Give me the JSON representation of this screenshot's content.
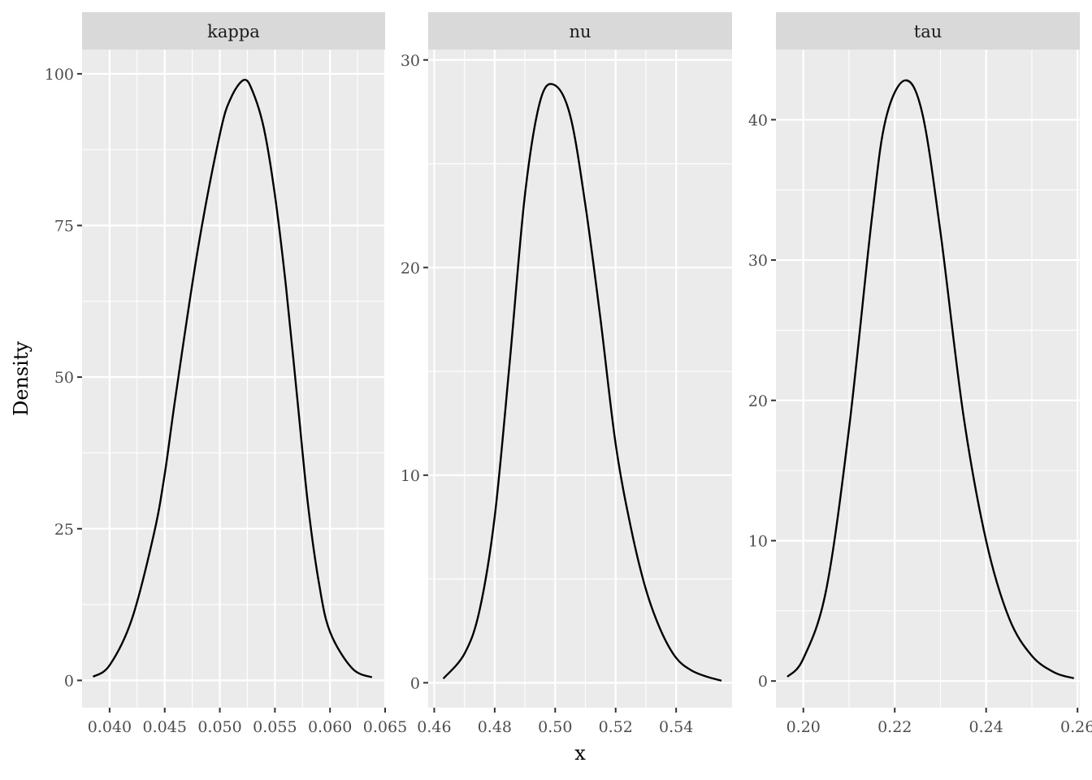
{
  "chart_data": [
    {
      "type": "line",
      "facet": "kappa",
      "xlim": [
        0.0375,
        0.065
      ],
      "ylim": [
        -4.5,
        104
      ],
      "x_ticks": [
        0.04,
        0.045,
        0.05,
        0.055,
        0.06,
        0.065
      ],
      "x_tick_labels": [
        "0.040",
        "0.045",
        "0.050",
        "0.055",
        "0.060",
        "0.065"
      ],
      "y_ticks": [
        0,
        25,
        50,
        75,
        100
      ],
      "y_tick_labels": [
        "0",
        "25",
        "50",
        "75",
        "100"
      ],
      "x": [
        0.0385,
        0.04,
        0.042,
        0.044,
        0.045,
        0.046,
        0.048,
        0.05,
        0.051,
        0.0522,
        0.053,
        0.054,
        0.055,
        0.056,
        0.057,
        0.058,
        0.059,
        0.06,
        0.062,
        0.0638
      ],
      "y": [
        0.6,
        2.5,
        10,
        24,
        34,
        47,
        71,
        90,
        96,
        99,
        97,
        91,
        80,
        65,
        47,
        29,
        16,
        8,
        2,
        0.5
      ]
    },
    {
      "type": "line",
      "facet": "nu",
      "xlim": [
        0.458,
        0.5585
      ],
      "ylim": [
        -1.2,
        30.5
      ],
      "x_ticks": [
        0.46,
        0.48,
        0.5,
        0.52,
        0.54
      ],
      "x_tick_labels": [
        "0.46",
        "0.48",
        "0.50",
        "0.52",
        "0.54"
      ],
      "y_ticks": [
        0,
        10,
        20,
        30
      ],
      "y_tick_labels": [
        "0",
        "10",
        "20",
        "30"
      ],
      "x": [
        0.463,
        0.47,
        0.475,
        0.48,
        0.485,
        0.49,
        0.495,
        0.4997,
        0.505,
        0.51,
        0.515,
        0.52,
        0.525,
        0.53,
        0.535,
        0.54,
        0.545,
        0.55,
        0.555
      ],
      "y": [
        0.2,
        1.4,
        3.5,
        8.0,
        15.5,
        23.5,
        28.0,
        28.8,
        27.3,
        23.0,
        17.5,
        11.5,
        7.5,
        4.5,
        2.5,
        1.2,
        0.6,
        0.3,
        0.1
      ]
    },
    {
      "type": "line",
      "facet": "tau",
      "xlim": [
        0.194,
        0.2605
      ],
      "ylim": [
        -1.9,
        45
      ],
      "x_ticks": [
        0.2,
        0.22,
        0.24,
        0.26
      ],
      "x_tick_labels": [
        "0.20",
        "0.22",
        "0.24",
        "0.26"
      ],
      "y_ticks": [
        0,
        10,
        20,
        30,
        40
      ],
      "y_tick_labels": [
        "0",
        "10",
        "20",
        "30",
        "40"
      ],
      "x": [
        0.1965,
        0.2,
        0.205,
        0.21,
        0.215,
        0.218,
        0.2222,
        0.226,
        0.23,
        0.235,
        0.24,
        0.245,
        0.25,
        0.255,
        0.2592
      ],
      "y": [
        0.3,
        1.6,
        6.5,
        18,
        33,
        40,
        42.8,
        40.5,
        32,
        19,
        10,
        4.5,
        1.8,
        0.6,
        0.2
      ]
    }
  ],
  "axes": {
    "xlabel": "x",
    "ylabel": "Density"
  }
}
